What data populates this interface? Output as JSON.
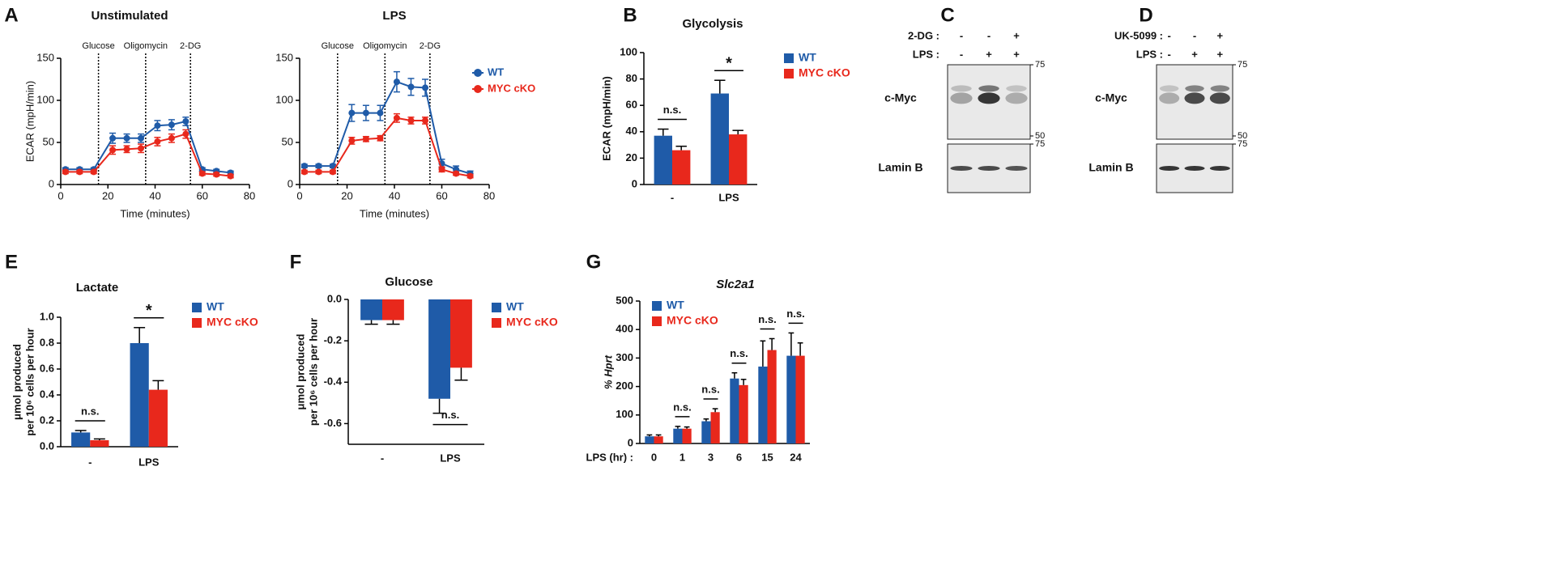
{
  "chart_data": [
    {
      "type": "line",
      "panel": "A",
      "title": "Unstimulated",
      "xlabel": "Time (minutes)",
      "ylabel": "ECAR (mpH/min)",
      "xlim": [
        0,
        80
      ],
      "xticks": [
        0,
        20,
        40,
        60,
        80
      ],
      "ylim": [
        0,
        150
      ],
      "yticks": [
        0,
        50,
        100,
        150
      ],
      "events": [
        {
          "x": 16,
          "label": "Glucose"
        },
        {
          "x": 36,
          "label": "Oligomycin"
        },
        {
          "x": 55,
          "label": "2-DG"
        }
      ],
      "x": [
        2,
        8,
        14,
        22,
        28,
        34,
        41,
        47,
        53,
        60,
        66,
        72
      ],
      "series": [
        {
          "name": "WT",
          "color": "#1f5ba8",
          "values": [
            18,
            18,
            18,
            55,
            55,
            55,
            70,
            71,
            75,
            18,
            16,
            14
          ],
          "errors": [
            2,
            2,
            2,
            6,
            5,
            5,
            6,
            6,
            5,
            2,
            2,
            2
          ]
        },
        {
          "name": "MYC cKO",
          "color": "#e8281c",
          "values": [
            15,
            15,
            15,
            41,
            42,
            43,
            51,
            55,
            60,
            13,
            12,
            10
          ],
          "errors": [
            2,
            2,
            2,
            5,
            4,
            5,
            5,
            5,
            5,
            2,
            2,
            2
          ]
        }
      ]
    },
    {
      "type": "line",
      "title": "LPS",
      "xlabel": "Time (minutes)",
      "legend": "right",
      "xlim": [
        0,
        80
      ],
      "xticks": [
        0,
        20,
        40,
        60,
        80
      ],
      "ylim": [
        0,
        150
      ],
      "yticks": [
        0,
        50,
        100,
        150
      ],
      "events": [
        {
          "x": 16,
          "label": "Glucose"
        },
        {
          "x": 36,
          "label": "Oligomycin"
        },
        {
          "x": 55,
          "label": "2-DG"
        }
      ],
      "x": [
        2,
        8,
        14,
        22,
        28,
        34,
        41,
        47,
        53,
        60,
        66,
        72
      ],
      "series": [
        {
          "name": "WT",
          "color": "#1f5ba8",
          "values": [
            22,
            22,
            22,
            85,
            85,
            85,
            122,
            116,
            115,
            25,
            18,
            13
          ],
          "errors": [
            2,
            2,
            2,
            10,
            9,
            9,
            12,
            10,
            10,
            5,
            4,
            3
          ]
        },
        {
          "name": "MYC cKO",
          "color": "#e8281c",
          "values": [
            15,
            15,
            15,
            52,
            54,
            55,
            79,
            76,
            76,
            18,
            13,
            10
          ],
          "errors": [
            2,
            2,
            2,
            4,
            3,
            3,
            5,
            4,
            4,
            3,
            2,
            2
          ]
        }
      ]
    },
    {
      "type": "bar",
      "panel": "B",
      "title": "Glycolysis",
      "ylabel": "ECAR (mpH/min)",
      "legend": "right",
      "categories": [
        "-",
        "LPS"
      ],
      "ylim": [
        0,
        100
      ],
      "yticks": [
        0,
        20,
        40,
        60,
        80,
        100
      ],
      "significance": [
        "n.s.",
        "*"
      ],
      "series": [
        {
          "name": "WT",
          "color": "#1f5ba8",
          "values": [
            37,
            69
          ],
          "errors": [
            5,
            10
          ]
        },
        {
          "name": "MYC cKO",
          "color": "#e8281c",
          "values": [
            26,
            38
          ],
          "errors": [
            3,
            3
          ]
        }
      ]
    },
    {
      "type": "blot",
      "panel": "C",
      "rows": [
        {
          "label": "2-DG :",
          "marks": [
            "-",
            "-",
            "+"
          ]
        },
        {
          "label": "LPS :",
          "marks": [
            "-",
            "+",
            "+"
          ]
        }
      ],
      "bands": [
        "c-Myc",
        "Lamin B"
      ],
      "markers": [
        75,
        50,
        75
      ]
    },
    {
      "type": "blot",
      "panel": "D",
      "rows": [
        {
          "label": "UK-5099 :",
          "marks": [
            "-",
            "-",
            "+"
          ]
        },
        {
          "label": "LPS :",
          "marks": [
            "-",
            "+",
            "+"
          ]
        }
      ],
      "bands": [
        "c-Myc",
        "Lamin B"
      ],
      "markers": [
        75,
        50,
        75
      ]
    },
    {
      "type": "bar",
      "panel": "E",
      "title": "Lactate",
      "ylabel": [
        "μmol produced",
        "per 10⁶ cells per hour"
      ],
      "legend": "right",
      "categories": [
        "-",
        "LPS"
      ],
      "ylim": [
        0,
        1.0
      ],
      "yticks": [
        {
          "value": 0,
          "label": "0.0"
        },
        0.2,
        0.4,
        0.6,
        0.8,
        {
          "value": 1.0,
          "label": "1.0"
        }
      ],
      "significance": [
        "n.s.",
        "*"
      ],
      "series": [
        {
          "name": "WT",
          "color": "#1f5ba8",
          "values": [
            0.11,
            0.8
          ],
          "errors": [
            0.015,
            0.12
          ]
        },
        {
          "name": "MYC cKO",
          "color": "#e8281c",
          "values": [
            0.05,
            0.44
          ],
          "errors": [
            0.01,
            0.07
          ]
        }
      ]
    },
    {
      "type": "bar",
      "panel": "F",
      "title": "Glucose",
      "ylabel": [
        "μmol produced",
        "per 10⁶ cells per hour"
      ],
      "legend": "right",
      "categories": [
        "-",
        "LPS"
      ],
      "ylim": [
        -0.7,
        0
      ],
      "yticks": [
        {
          "value": 0,
          "label": "0.0"
        },
        -0.2,
        -0.4,
        -0.6
      ],
      "significance": [
        null,
        "n.s."
      ],
      "series": [
        {
          "name": "WT",
          "color": "#1f5ba8",
          "values": [
            -0.1,
            -0.48
          ],
          "errors": [
            0.02,
            0.07
          ]
        },
        {
          "name": "MYC cKO",
          "color": "#e8281c",
          "values": [
            -0.1,
            -0.33
          ],
          "errors": [
            0.02,
            0.06
          ]
        }
      ]
    },
    {
      "type": "bar",
      "panel": "G",
      "title": "Slc2a1",
      "ylabel": "% Hprt",
      "xlabel": "LPS (hr) :",
      "legend": "upper left",
      "categories": [
        "0",
        "1",
        "3",
        "6",
        "15",
        "24"
      ],
      "ylim": [
        0,
        500
      ],
      "yticks": [
        0,
        100,
        200,
        300,
        400,
        500
      ],
      "significance": [
        null,
        "n.s.",
        "n.s.",
        "n.s.",
        "n.s.",
        "n.s."
      ],
      "series": [
        {
          "name": "WT",
          "color": "#1f5ba8",
          "values": [
            25,
            52,
            78,
            228,
            270,
            308
          ],
          "errors": [
            5,
            8,
            8,
            20,
            90,
            80
          ]
        },
        {
          "name": "MYC cKO",
          "color": "#e8281c",
          "values": [
            25,
            52,
            110,
            205,
            328,
            308
          ],
          "errors": [
            5,
            6,
            12,
            20,
            40,
            45
          ]
        }
      ]
    }
  ]
}
